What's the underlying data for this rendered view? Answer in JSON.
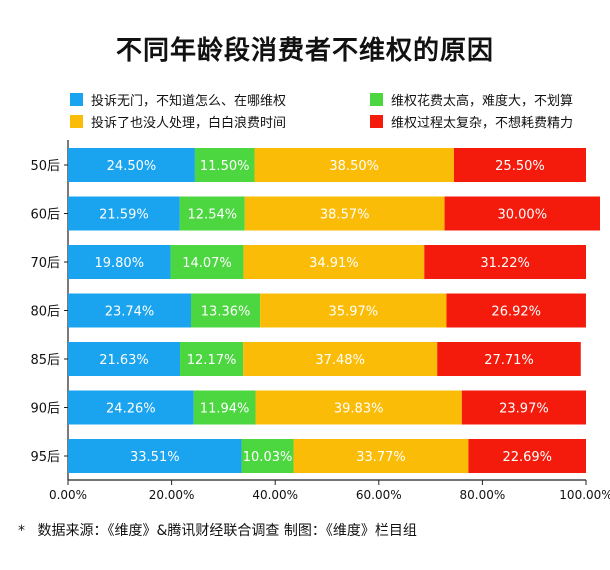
{
  "title": "不同年龄段消费者不维权的原因",
  "colors": {
    "blue": "#1aa3ee",
    "green": "#4cd640",
    "orange": "#fbbc07",
    "red": "#f41a0c",
    "axis": "#222222",
    "label_light": "#ffffff"
  },
  "chart_data": {
    "type": "bar",
    "orientation": "horizontal",
    "stacked": true,
    "categories": [
      "50后",
      "60后",
      "70后",
      "80后",
      "85后",
      "90后",
      "95后"
    ],
    "series": [
      {
        "name": "投诉无门，不知道怎么、在哪维权",
        "color": "#1aa3ee",
        "values": [
          24.5,
          21.59,
          19.8,
          23.74,
          21.63,
          24.26,
          33.51
        ],
        "labels": [
          "24.50%",
          "21.59%",
          "19.80%",
          "23.74%",
          "21.63%",
          "24.26%",
          "33.51%"
        ]
      },
      {
        "name": "维权花费太高，难度大，不划算",
        "color": "#4cd640",
        "values": [
          11.5,
          12.54,
          14.07,
          13.36,
          12.17,
          11.94,
          10.03
        ],
        "labels": [
          "11.50%",
          "12.54%",
          "14.07%",
          "13.36%",
          "12.17%",
          "11.94%",
          "10.03%"
        ]
      },
      {
        "name": "投诉了也没人处理，白白浪费时间",
        "color": "#fbbc07",
        "values": [
          38.5,
          38.57,
          34.91,
          35.97,
          37.48,
          39.83,
          33.77
        ],
        "labels": [
          "38.50%",
          "38.57%",
          "34.91%",
          "35.97%",
          "37.48%",
          "39.83%",
          "33.77%"
        ]
      },
      {
        "name": "维权过程太复杂，不想耗费精力",
        "color": "#f41a0c",
        "values": [
          25.5,
          30.0,
          31.22,
          26.92,
          27.71,
          23.97,
          22.69
        ],
        "labels": [
          "25.50%",
          "30.00%",
          "31.22%",
          "26.92%",
          "27.71%",
          "23.97%",
          "22.69%"
        ]
      }
    ],
    "xlim": [
      0,
      100
    ],
    "xticks": [
      0,
      20,
      40,
      60,
      80,
      100
    ],
    "xtick_labels": [
      "0.00%",
      "20.00%",
      "40.00%",
      "60.00%",
      "80.00%",
      "100.00%"
    ],
    "grid": false,
    "legend_position": "top"
  },
  "legend_order": [
    0,
    1,
    2,
    3
  ],
  "footer": {
    "star": "*",
    "text": "数据来源：《维度》&腾讯财经联合调查   制图：《维度》栏目组"
  }
}
